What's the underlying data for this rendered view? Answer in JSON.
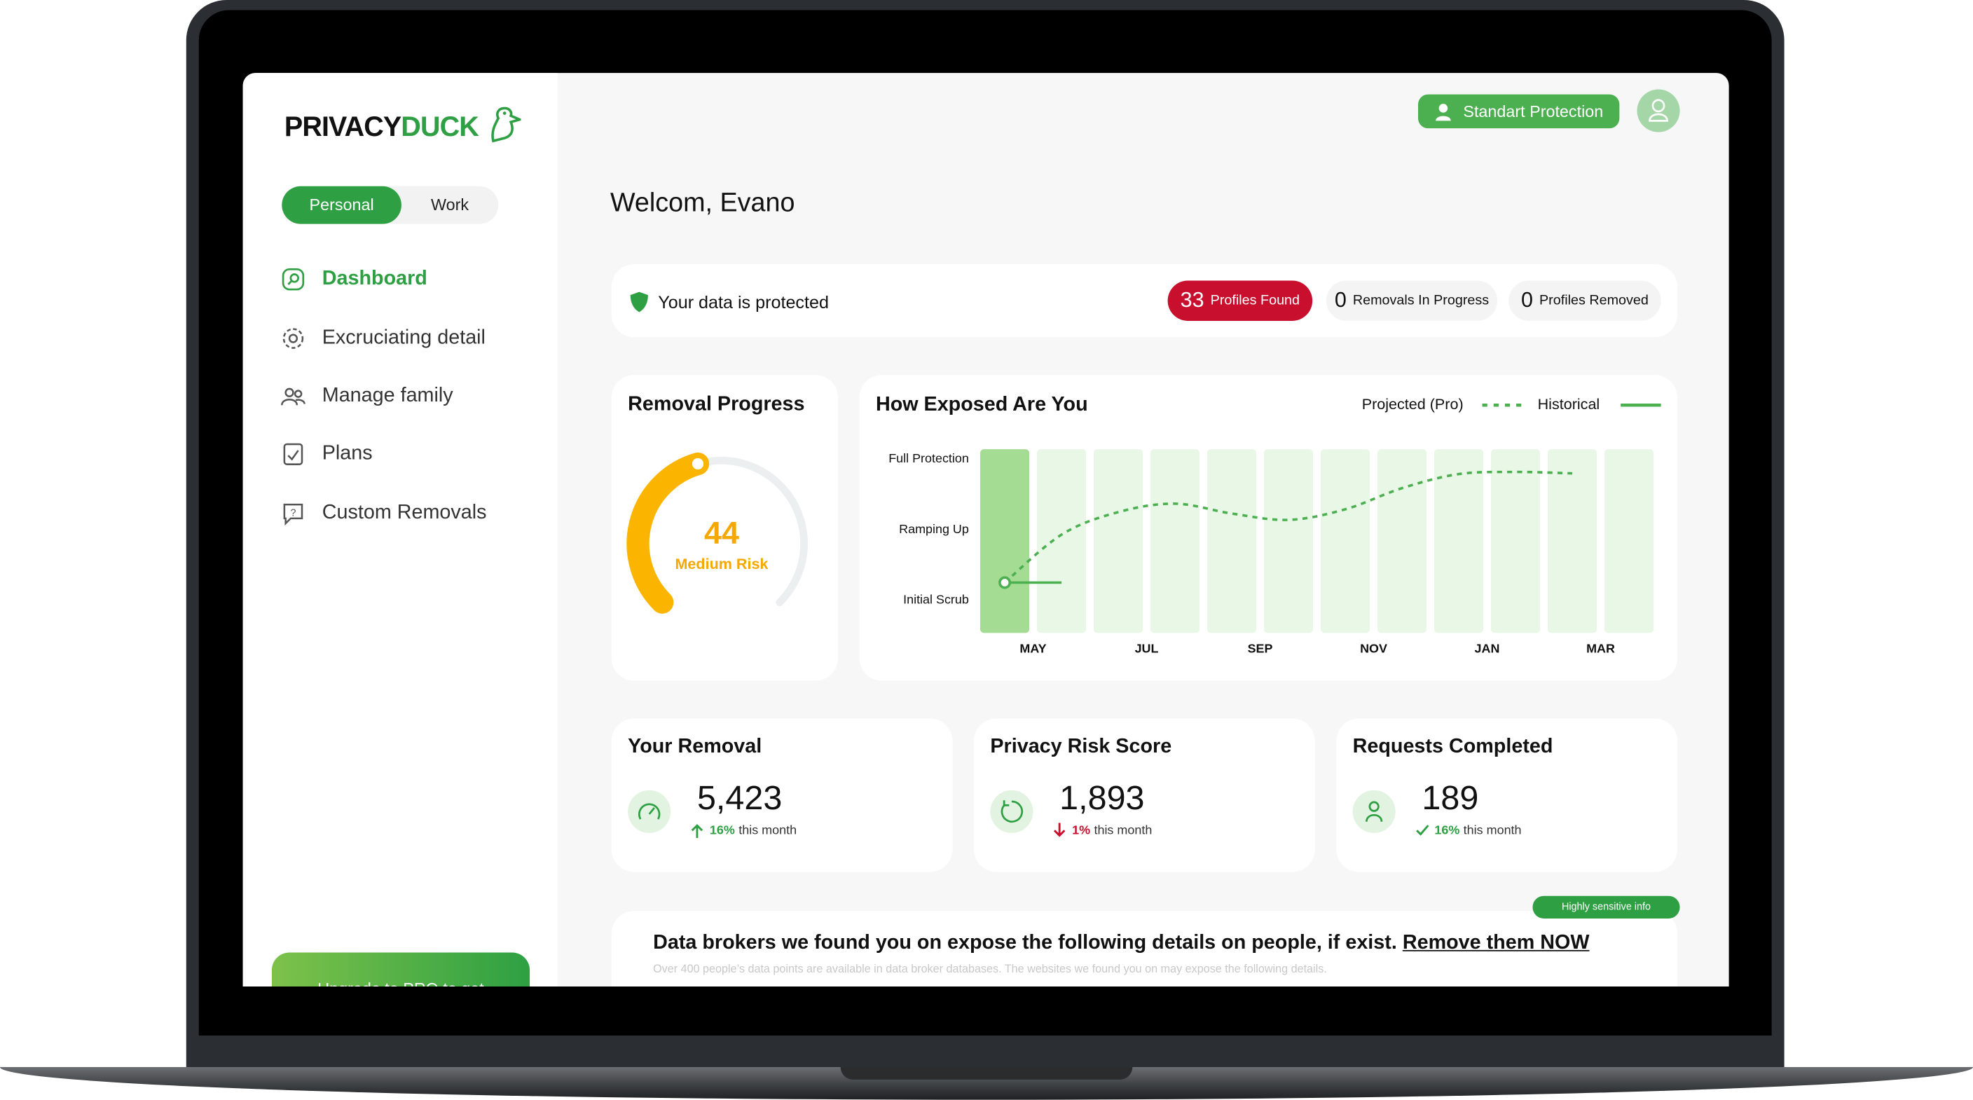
{
  "sidebar": {
    "logo": [
      "PRIVACY",
      "DUCK"
    ],
    "tabs": [
      "Personal",
      "Work"
    ],
    "nav": [
      "Dashboard",
      "Excruciating detail",
      "Manage family",
      "Plans",
      "Custom Removals"
    ],
    "upgrade": "Upgrade to PRO to get"
  },
  "header": {
    "plan": "Standart Protection"
  },
  "greeting": "Welcom, Evano",
  "status": {
    "text": "Your data is protected",
    "badges": [
      {
        "count": 33,
        "label": "Profiles Found"
      },
      {
        "count": 0,
        "label": "Removals In Progress"
      },
      {
        "count": 0,
        "label": "Profiles Removed"
      }
    ]
  },
  "removal_progress": {
    "title": "Removal Progress",
    "score": 44,
    "label": "Medium Risk",
    "range": [
      0,
      100
    ]
  },
  "exposure": {
    "chart_data": {
      "type": "line",
      "title": "How Exposed Are You",
      "categories": [
        "MAY",
        null,
        "JUL",
        null,
        "SEP",
        null,
        "NOV",
        null,
        "JAN",
        null,
        "MAR",
        null
      ],
      "series": [
        {
          "name": "Projected (Pro)",
          "color": "#4caf50",
          "dashed": true,
          "values": [
            0.25,
            0.93,
            1.25,
            1.37,
            1.23,
            1.14,
            1.29,
            1.59,
            1.79,
            1.82,
            1.8,
            null
          ]
        },
        {
          "name": "Historical",
          "color": "#4caf50",
          "dashed": false,
          "values": [
            0.25,
            0.25,
            null,
            null,
            null,
            null,
            null,
            null,
            null,
            null,
            null,
            null
          ]
        }
      ],
      "ylim": [
        0,
        2
      ],
      "yticks": [
        {
          "value": 0,
          "label": "Initial Scrub"
        },
        {
          "value": 1,
          "label": "Ramping Up"
        },
        {
          "value": 2,
          "label": "Full Protection"
        }
      ]
    }
  },
  "stats": [
    {
      "title": "Your Removal",
      "value": "5,423",
      "change": "16%",
      "period": "this month",
      "trend": "up"
    },
    {
      "title": "Privacy Risk Score",
      "value": "1,893",
      "change": "1%",
      "period": "this month",
      "trend": "down"
    },
    {
      "title": "Requests Completed",
      "value": "189",
      "change": "16%",
      "period": "this month",
      "trend": "done"
    }
  ],
  "brokers": {
    "tag": "Highly sensitive info",
    "heading": "Data brokers we found you on expose the following details on people, if exist.",
    "link": "Remove them NOW",
    "note": "Over 400 people’s data points are available in data broker databases. The websites we found you on may expose the following details."
  }
}
